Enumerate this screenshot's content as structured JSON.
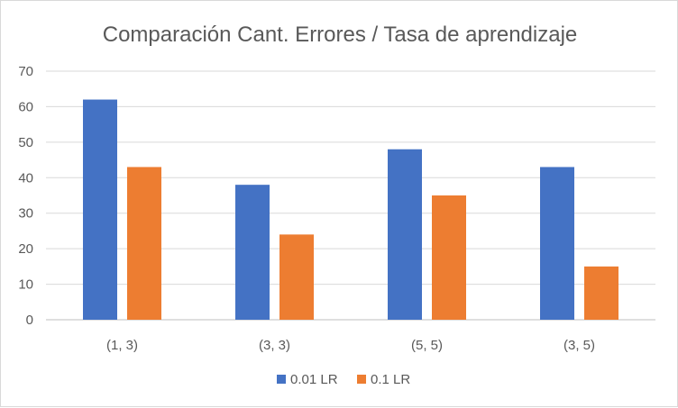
{
  "chart_data": {
    "type": "bar",
    "title": "Comparación Cant. Errores / Tasa de aprendizaje",
    "xlabel": "",
    "ylabel": "",
    "categories": [
      "(1, 3)",
      "(3, 3)",
      "(5, 5)",
      "(3, 5)"
    ],
    "series": [
      {
        "name": "0.01 LR",
        "color": "#4472c4",
        "values": [
          62,
          38,
          48,
          43
        ]
      },
      {
        "name": "0.1 LR",
        "color": "#ed7d31",
        "values": [
          43,
          24,
          35,
          15
        ]
      }
    ],
    "ylim": [
      0,
      70
    ],
    "yticks": [
      0,
      10,
      20,
      30,
      40,
      50,
      60,
      70
    ],
    "grid": true,
    "legend_position": "bottom"
  }
}
